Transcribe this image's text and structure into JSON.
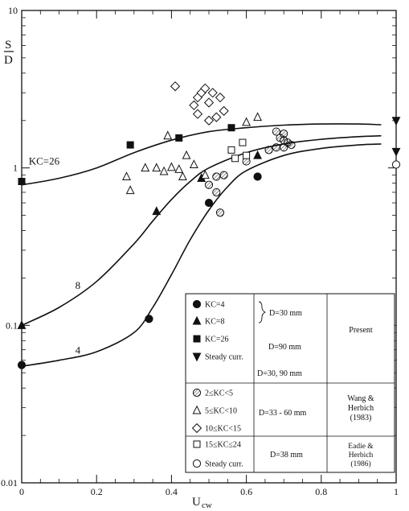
{
  "chart_data": {
    "type": "scatter",
    "title": "",
    "xlabel": "U",
    "xlabel_sub": "cw",
    "ylabel": "S",
    "ylabel_denominator": "D",
    "xlim": [
      0,
      1
    ],
    "ylim": [
      0.01,
      10
    ],
    "yscale": "log",
    "x_ticks": [
      {
        "v": 0,
        "label": "0"
      },
      {
        "v": 0.2,
        "label": "0.2"
      },
      {
        "v": 0.4,
        "label": "0.4"
      },
      {
        "v": 0.6,
        "label": "0.6"
      },
      {
        "v": 0.8,
        "label": "0.8"
      },
      {
        "v": 1,
        "label": "1"
      }
    ],
    "y_ticks": [
      {
        "v": 0.01,
        "label": "0.01"
      },
      {
        "v": 0.1,
        "label": "0.1"
      },
      {
        "v": 1,
        "label": "1"
      },
      {
        "v": 10,
        "label": "10"
      }
    ],
    "curves": [
      {
        "label": "KC=26",
        "label_at": [
          0.06,
          1.05
        ],
        "points": [
          [
            0,
            0.78
          ],
          [
            0.1,
            0.86
          ],
          [
            0.2,
            1.0
          ],
          [
            0.3,
            1.25
          ],
          [
            0.4,
            1.5
          ],
          [
            0.5,
            1.7
          ],
          [
            0.6,
            1.8
          ],
          [
            0.7,
            1.87
          ],
          [
            0.8,
            1.9
          ],
          [
            0.9,
            1.9
          ],
          [
            0.96,
            1.88
          ]
        ]
      },
      {
        "label": "8",
        "label_at": [
          0.15,
          0.17
        ],
        "points": [
          [
            0,
            0.1
          ],
          [
            0.1,
            0.13
          ],
          [
            0.2,
            0.19
          ],
          [
            0.3,
            0.33
          ],
          [
            0.35,
            0.46
          ],
          [
            0.4,
            0.63
          ],
          [
            0.45,
            0.82
          ],
          [
            0.5,
            1.0
          ],
          [
            0.6,
            1.25
          ],
          [
            0.7,
            1.42
          ],
          [
            0.8,
            1.52
          ],
          [
            0.9,
            1.58
          ],
          [
            0.96,
            1.6
          ]
        ]
      },
      {
        "label": "4",
        "label_at": [
          0.15,
          0.066
        ],
        "points": [
          [
            0,
            0.055
          ],
          [
            0.1,
            0.06
          ],
          [
            0.2,
            0.068
          ],
          [
            0.3,
            0.09
          ],
          [
            0.35,
            0.13
          ],
          [
            0.4,
            0.21
          ],
          [
            0.45,
            0.35
          ],
          [
            0.5,
            0.54
          ],
          [
            0.55,
            0.76
          ],
          [
            0.6,
            0.96
          ],
          [
            0.7,
            1.2
          ],
          [
            0.8,
            1.33
          ],
          [
            0.9,
            1.4
          ],
          [
            0.96,
            1.42
          ]
        ]
      }
    ],
    "series": [
      {
        "name": "KC=4",
        "marker": "filled-circle",
        "points": [
          [
            0,
            0.056
          ],
          [
            0.34,
            0.11
          ],
          [
            0.5,
            0.6
          ],
          [
            0.63,
            0.88
          ]
        ]
      },
      {
        "name": "KC=8",
        "marker": "filled-triangle",
        "points": [
          [
            0,
            0.1
          ],
          [
            0.36,
            0.53
          ],
          [
            0.48,
            0.86
          ],
          [
            0.63,
            1.2
          ]
        ]
      },
      {
        "name": "KC=26",
        "marker": "filled-square",
        "points": [
          [
            0,
            0.82
          ],
          [
            0.29,
            1.4
          ],
          [
            0.42,
            1.55
          ],
          [
            0.56,
            1.8
          ]
        ]
      },
      {
        "name": "Steady curr.",
        "marker": "filled-down-triangle",
        "points": [
          [
            1,
            2.0
          ],
          [
            1,
            1.27
          ]
        ]
      },
      {
        "name": "2≤KC<5",
        "marker": "hatched-circle",
        "points": [
          [
            0.5,
            0.78
          ],
          [
            0.52,
            0.88
          ],
          [
            0.52,
            0.7
          ],
          [
            0.54,
            0.9
          ],
          [
            0.53,
            0.52
          ],
          [
            0.6,
            1.1
          ],
          [
            0.66,
            1.3
          ],
          [
            0.68,
            1.35
          ],
          [
            0.68,
            1.7
          ],
          [
            0.69,
            1.55
          ],
          [
            0.7,
            1.5
          ],
          [
            0.7,
            1.65
          ],
          [
            0.7,
            1.35
          ],
          [
            0.71,
            1.45
          ],
          [
            0.72,
            1.4
          ]
        ]
      },
      {
        "name": "5≤KC<10",
        "marker": "open-triangle",
        "points": [
          [
            0.28,
            0.88
          ],
          [
            0.29,
            0.72
          ],
          [
            0.33,
            1.0
          ],
          [
            0.36,
            1.0
          ],
          [
            0.38,
            0.95
          ],
          [
            0.39,
            1.6
          ],
          [
            0.4,
            1.01
          ],
          [
            0.42,
            0.98
          ],
          [
            0.43,
            0.88
          ],
          [
            0.44,
            1.2
          ],
          [
            0.46,
            1.05
          ],
          [
            0.49,
            0.9
          ],
          [
            0.6,
            1.95
          ],
          [
            0.63,
            2.1
          ]
        ]
      },
      {
        "name": "10≤KC<15",
        "marker": "open-diamond",
        "points": [
          [
            0.41,
            3.3
          ],
          [
            0.46,
            2.5
          ],
          [
            0.47,
            2.2
          ],
          [
            0.47,
            2.8
          ],
          [
            0.48,
            3.0
          ],
          [
            0.49,
            3.2
          ],
          [
            0.5,
            2.6
          ],
          [
            0.51,
            3.0
          ],
          [
            0.5,
            2.0
          ],
          [
            0.52,
            2.1
          ],
          [
            0.53,
            2.8
          ],
          [
            0.54,
            2.3
          ]
        ]
      },
      {
        "name": "15≤KC≤24",
        "marker": "open-square",
        "points": [
          [
            0.56,
            1.3
          ],
          [
            0.57,
            1.15
          ],
          [
            0.59,
            1.45
          ],
          [
            0.6,
            1.2
          ]
        ]
      },
      {
        "name": "Steady curr.",
        "marker": "open-circle",
        "points": [
          [
            1,
            1.05
          ]
        ]
      }
    ],
    "legend": {
      "placement": "bottom-right",
      "rows": [
        {
          "marker": "filled-circle",
          "label": "KC=4"
        },
        {
          "marker": "filled-triangle",
          "label": "KC=8"
        },
        {
          "marker": "filled-square",
          "label": "KC=26"
        },
        {
          "marker": "filled-down-triangle",
          "label": "Steady curr."
        },
        {
          "marker": "hatched-circle",
          "label": "2≤KC<5"
        },
        {
          "marker": "open-triangle",
          "label": "5≤KC<10"
        },
        {
          "marker": "open-diamond",
          "label": "10≤KC<15"
        },
        {
          "marker": "open-square",
          "label": "15≤KC≤24"
        },
        {
          "marker": "open-circle",
          "label": "Steady curr."
        }
      ],
      "diameter_labels": [
        "D=30 mm",
        "D=90 mm",
        "D=30, 90 mm",
        "D=33 - 60 mm",
        "D=38 mm"
      ],
      "source_groups": [
        {
          "lines": [
            "Present"
          ]
        },
        {
          "lines": [
            "Wang &",
            "Herbich",
            "(1983)"
          ]
        },
        {
          "lines": [
            "Eadie &",
            "Herbich",
            "(1986)"
          ]
        }
      ]
    }
  }
}
